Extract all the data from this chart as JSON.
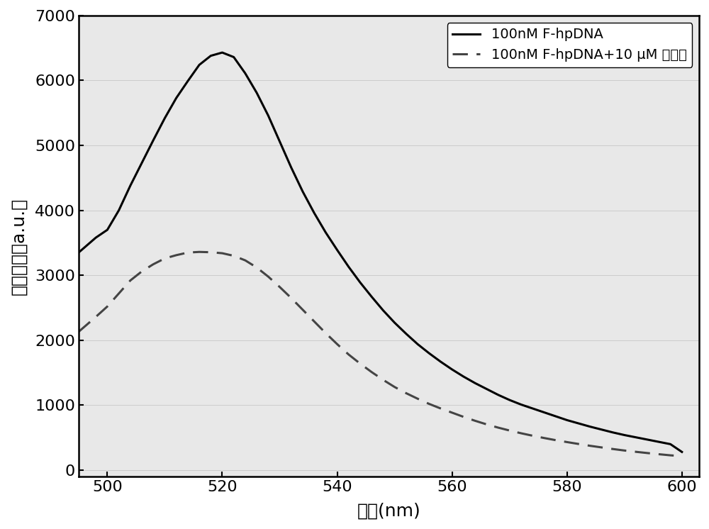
{
  "title": "",
  "xlabel": "波长(nm)",
  "ylabel": "荧光强度（a.u.）",
  "xlim": [
    495,
    603
  ],
  "ylim": [
    -100,
    7000
  ],
  "xticks": [
    500,
    520,
    540,
    560,
    580,
    600
  ],
  "yticks": [
    0,
    1000,
    2000,
    3000,
    4000,
    5000,
    6000,
    7000
  ],
  "legend1": "100nM F-hpDNA",
  "legend2": "100nM F-hpDNA+10 μM 大黄素",
  "line1_color": "#000000",
  "line2_color": "#444444",
  "background_color": "#e8e8e8",
  "figure_background": "#ffffff",
  "line1_x": [
    495,
    498,
    500,
    502,
    504,
    506,
    508,
    510,
    512,
    514,
    516,
    518,
    520,
    522,
    524,
    526,
    528,
    530,
    532,
    534,
    536,
    538,
    540,
    542,
    544,
    546,
    548,
    550,
    552,
    554,
    556,
    558,
    560,
    562,
    564,
    566,
    568,
    570,
    572,
    574,
    576,
    578,
    580,
    582,
    584,
    586,
    588,
    590,
    592,
    594,
    596,
    598,
    600
  ],
  "line1_y": [
    3350,
    3580,
    3700,
    4000,
    4380,
    4730,
    5080,
    5420,
    5730,
    5990,
    6240,
    6380,
    6430,
    6360,
    6110,
    5810,
    5460,
    5060,
    4660,
    4290,
    3960,
    3660,
    3390,
    3130,
    2890,
    2670,
    2460,
    2270,
    2100,
    1940,
    1800,
    1670,
    1550,
    1440,
    1340,
    1250,
    1160,
    1080,
    1010,
    950,
    890,
    830,
    770,
    720,
    670,
    625,
    580,
    540,
    505,
    470,
    435,
    400,
    280
  ],
  "line2_x": [
    495,
    498,
    500,
    502,
    504,
    506,
    508,
    510,
    512,
    514,
    516,
    518,
    520,
    522,
    524,
    526,
    528,
    530,
    532,
    534,
    536,
    538,
    540,
    542,
    544,
    546,
    548,
    550,
    552,
    554,
    556,
    558,
    560,
    562,
    564,
    566,
    568,
    570,
    572,
    574,
    576,
    578,
    580,
    582,
    584,
    586,
    588,
    590,
    592,
    594,
    596,
    598,
    600
  ],
  "line2_y": [
    2130,
    2360,
    2520,
    2720,
    2920,
    3060,
    3170,
    3260,
    3310,
    3350,
    3360,
    3355,
    3340,
    3300,
    3230,
    3120,
    2980,
    2820,
    2650,
    2470,
    2290,
    2110,
    1940,
    1780,
    1640,
    1510,
    1390,
    1280,
    1185,
    1100,
    1020,
    950,
    885,
    820,
    760,
    705,
    655,
    610,
    568,
    530,
    495,
    462,
    432,
    403,
    375,
    350,
    325,
    302,
    282,
    263,
    245,
    228,
    215
  ]
}
